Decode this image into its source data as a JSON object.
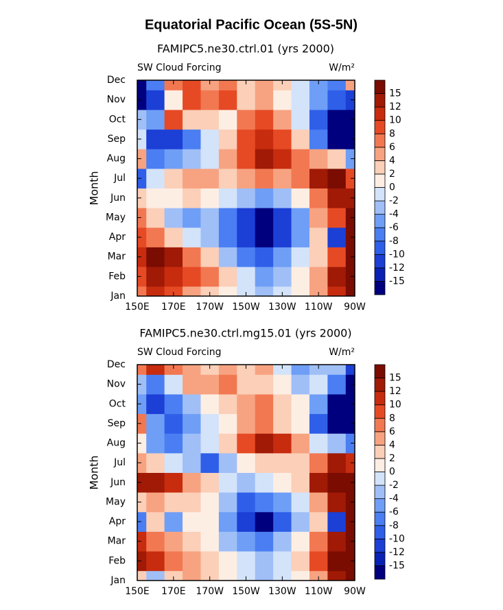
{
  "title": "Equatorial Pacific Ocean (5S-5N)",
  "chart_data": [
    {
      "type": "contour",
      "title": "FAMIPC5.ne30.ctrl.01 (yrs 2000)",
      "left_label": "SW Cloud Forcing",
      "right_label": "W/m²",
      "ylabel": "Month",
      "x": [
        150,
        160,
        170,
        180,
        190,
        200,
        210,
        220,
        230,
        240,
        250,
        260,
        270
      ],
      "xlim": [
        150,
        270
      ],
      "xticks": [
        {
          "value": 150,
          "label": "150E"
        },
        {
          "value": 170,
          "label": "170E"
        },
        {
          "value": 190,
          "label": "170W"
        },
        {
          "value": 210,
          "label": "150W"
        },
        {
          "value": 230,
          "label": "130W"
        },
        {
          "value": 250,
          "label": "110W"
        },
        {
          "value": 270,
          "label": "90W"
        }
      ],
      "categories": [
        "Jan",
        "Feb",
        "Mar",
        "Apr",
        "May",
        "Jun",
        "Jul",
        "Aug",
        "Sep",
        "Oct",
        "Nov",
        "Dec"
      ],
      "z": [
        [
          6,
          10,
          8,
          4,
          2,
          0,
          -2,
          -4,
          -2,
          0,
          4,
          10,
          16
        ],
        [
          8,
          12,
          10,
          8,
          6,
          2,
          -2,
          -6,
          -4,
          0,
          4,
          12,
          16
        ],
        [
          10,
          16,
          12,
          6,
          2,
          -4,
          -8,
          -10,
          -6,
          -2,
          2,
          8,
          16
        ],
        [
          8,
          6,
          2,
          -2,
          -4,
          -8,
          -12,
          -16,
          -12,
          -6,
          2,
          -12,
          16
        ],
        [
          6,
          2,
          -4,
          -6,
          -4,
          -8,
          -12,
          -16,
          -12,
          -6,
          4,
          8,
          16
        ],
        [
          2,
          0,
          0,
          2,
          0,
          -2,
          -4,
          -6,
          -4,
          0,
          6,
          12,
          12
        ],
        [
          -10,
          -2,
          2,
          4,
          4,
          2,
          4,
          6,
          4,
          6,
          12,
          16,
          8
        ],
        [
          4,
          -8,
          -6,
          -4,
          -2,
          4,
          8,
          12,
          10,
          6,
          4,
          2,
          -6
        ],
        [
          -2,
          -12,
          -12,
          -8,
          -2,
          2,
          8,
          10,
          8,
          2,
          -8,
          -16,
          -16
        ],
        [
          -4,
          -6,
          8,
          2,
          2,
          0,
          6,
          8,
          4,
          -2,
          -10,
          -16,
          -16
        ],
        [
          -16,
          -12,
          0,
          8,
          6,
          8,
          2,
          4,
          0,
          -2,
          -6,
          -10,
          -12
        ],
        [
          -16,
          -8,
          6,
          8,
          4,
          6,
          2,
          4,
          2,
          -2,
          -6,
          -8,
          4
        ]
      ],
      "levels": [
        -15,
        -12,
        -10,
        -8,
        -6,
        -4,
        -2,
        0,
        2,
        4,
        6,
        8,
        10,
        12,
        15
      ],
      "colors": [
        "#00007f",
        "#0a22b4",
        "#1c3fd6",
        "#2f5fe8",
        "#4a7ef2",
        "#6f9ef6",
        "#a0bff7",
        "#d3e3fa",
        "#fdeee4",
        "#fbcfb8",
        "#f7a381",
        "#f27852",
        "#e64a25",
        "#c72c0e",
        "#a01a06",
        "#7a0c02"
      ]
    },
    {
      "type": "contour",
      "title": "FAMIPC5.ne30.ctrl.mg15.01 (yrs 2000)",
      "left_label": "SW Cloud Forcing",
      "right_label": "W/m²",
      "ylabel": "Month",
      "x": [
        150,
        160,
        170,
        180,
        190,
        200,
        210,
        220,
        230,
        240,
        250,
        260,
        270
      ],
      "xlim": [
        150,
        270
      ],
      "xticks": [
        {
          "value": 150,
          "label": "150E"
        },
        {
          "value": 170,
          "label": "170E"
        },
        {
          "value": 190,
          "label": "170W"
        },
        {
          "value": 210,
          "label": "150W"
        },
        {
          "value": 230,
          "label": "130W"
        },
        {
          "value": 250,
          "label": "110W"
        },
        {
          "value": 270,
          "label": "90W"
        }
      ],
      "categories": [
        "Jan",
        "Feb",
        "Mar",
        "Apr",
        "May",
        "Jun",
        "Jul",
        "Aug",
        "Sep",
        "Oct",
        "Nov",
        "Dec"
      ],
      "z": [
        [
          2,
          -4,
          2,
          4,
          2,
          0,
          -2,
          -4,
          -2,
          0,
          4,
          12,
          16
        ],
        [
          12,
          10,
          6,
          4,
          2,
          0,
          -2,
          -4,
          -2,
          2,
          8,
          16,
          16
        ],
        [
          10,
          6,
          4,
          2,
          0,
          -4,
          -6,
          -8,
          -4,
          0,
          6,
          12,
          16
        ],
        [
          -8,
          2,
          -6,
          0,
          0,
          -6,
          -12,
          -16,
          -10,
          -4,
          2,
          -12,
          16
        ],
        [
          2,
          4,
          2,
          2,
          0,
          -4,
          -10,
          -8,
          -6,
          -2,
          4,
          12,
          16
        ],
        [
          12,
          12,
          10,
          4,
          2,
          -2,
          -4,
          -2,
          0,
          2,
          12,
          16,
          16
        ],
        [
          4,
          2,
          -2,
          -4,
          -10,
          -4,
          0,
          2,
          2,
          2,
          6,
          12,
          10
        ],
        [
          0,
          -6,
          -8,
          -4,
          -2,
          2,
          8,
          12,
          10,
          4,
          -2,
          -4,
          -8
        ],
        [
          6,
          -6,
          -10,
          -6,
          -2,
          0,
          4,
          6,
          2,
          0,
          -10,
          -16,
          -16
        ],
        [
          -6,
          -12,
          -8,
          -4,
          0,
          2,
          4,
          6,
          2,
          0,
          -6,
          -16,
          -16
        ],
        [
          -4,
          -8,
          -2,
          4,
          4,
          6,
          2,
          2,
          0,
          -4,
          -2,
          -8,
          -16
        ],
        [
          6,
          10,
          6,
          4,
          2,
          4,
          2,
          4,
          -2,
          -6,
          -4,
          -4,
          -12
        ]
      ],
      "levels": [
        -15,
        -12,
        -10,
        -8,
        -6,
        -4,
        -2,
        0,
        2,
        4,
        6,
        8,
        10,
        12,
        15
      ],
      "colors": [
        "#00007f",
        "#0a22b4",
        "#1c3fd6",
        "#2f5fe8",
        "#4a7ef2",
        "#6f9ef6",
        "#a0bff7",
        "#d3e3fa",
        "#fdeee4",
        "#fbcfb8",
        "#f7a381",
        "#f27852",
        "#e64a25",
        "#c72c0e",
        "#a01a06",
        "#7a0c02"
      ]
    }
  ]
}
